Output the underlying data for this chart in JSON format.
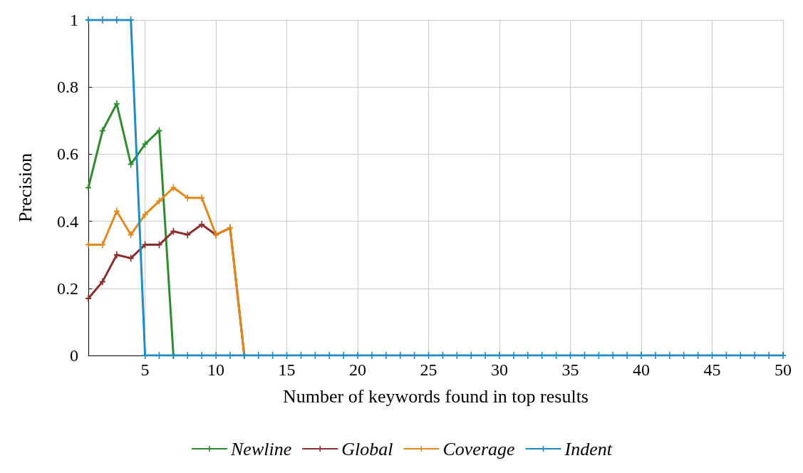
{
  "chart_data": {
    "type": "line",
    "xlabel": "Number of keywords found in top results",
    "ylabel": "Precision",
    "x": [
      1,
      2,
      3,
      4,
      5,
      6,
      7,
      8,
      9,
      10,
      11,
      12,
      13,
      14,
      15,
      16,
      17,
      18,
      19,
      20,
      21,
      22,
      23,
      24,
      25,
      26,
      27,
      28,
      29,
      30,
      31,
      32,
      33,
      34,
      35,
      36,
      37,
      38,
      39,
      40,
      41,
      42,
      43,
      44,
      45,
      46,
      47,
      48,
      49,
      50
    ],
    "series": [
      {
        "name": "Newline",
        "color": "#2e8b2e",
        "values": [
          0.5,
          0.67,
          0.75,
          0.57,
          0.63,
          0.67,
          0,
          null,
          null,
          null,
          null,
          null,
          null,
          null,
          null,
          null,
          null,
          null,
          null,
          null,
          null,
          null,
          null,
          null,
          null,
          null,
          null,
          null,
          null,
          null,
          null,
          null,
          null,
          null,
          null,
          null,
          null,
          null,
          null,
          null,
          null,
          null,
          null,
          null,
          null,
          null,
          null,
          null,
          null,
          null
        ]
      },
      {
        "name": "Global",
        "color": "#8b2e2e",
        "values": [
          0.17,
          0.22,
          0.3,
          0.29,
          0.33,
          0.33,
          0.37,
          0.36,
          0.39,
          0.36,
          0.38,
          0,
          null,
          null,
          null,
          null,
          null,
          null,
          null,
          null,
          null,
          null,
          null,
          null,
          null,
          null,
          null,
          null,
          null,
          null,
          null,
          null,
          null,
          null,
          null,
          null,
          null,
          null,
          null,
          null,
          null,
          null,
          null,
          null,
          null,
          null,
          null,
          null,
          null,
          null
        ]
      },
      {
        "name": "Coverage",
        "color": "#e08a1e",
        "values": [
          0.33,
          0.33,
          0.43,
          0.36,
          0.42,
          0.46,
          0.5,
          0.47,
          0.47,
          0.36,
          0.38,
          0,
          null,
          null,
          null,
          null,
          null,
          null,
          null,
          null,
          null,
          null,
          null,
          null,
          null,
          null,
          null,
          null,
          null,
          null,
          null,
          null,
          null,
          null,
          null,
          null,
          null,
          null,
          null,
          null,
          null,
          null,
          null,
          null,
          null,
          null,
          null,
          null,
          null,
          null
        ]
      },
      {
        "name": "Indent",
        "color": "#1f8cc4",
        "values": [
          1,
          1,
          1,
          1,
          0,
          0,
          0,
          0,
          0,
          0,
          0,
          0,
          0,
          0,
          0,
          0,
          0,
          0,
          0,
          0,
          0,
          0,
          0,
          0,
          0,
          0,
          0,
          0,
          0,
          0,
          0,
          0,
          0,
          0,
          0,
          0,
          0,
          0,
          0,
          0,
          0,
          0,
          0,
          0,
          0,
          0,
          0,
          0,
          0,
          0
        ]
      }
    ],
    "xlim": [
      1,
      50
    ],
    "xticks": [
      5,
      10,
      15,
      20,
      25,
      30,
      35,
      40,
      45,
      50
    ],
    "ylim": [
      0,
      1
    ],
    "yticks": [
      0,
      0.2,
      0.4,
      0.6,
      0.8,
      1
    ],
    "grid": true,
    "legend": "bottom",
    "marker": "cross",
    "line_style": "solid"
  }
}
